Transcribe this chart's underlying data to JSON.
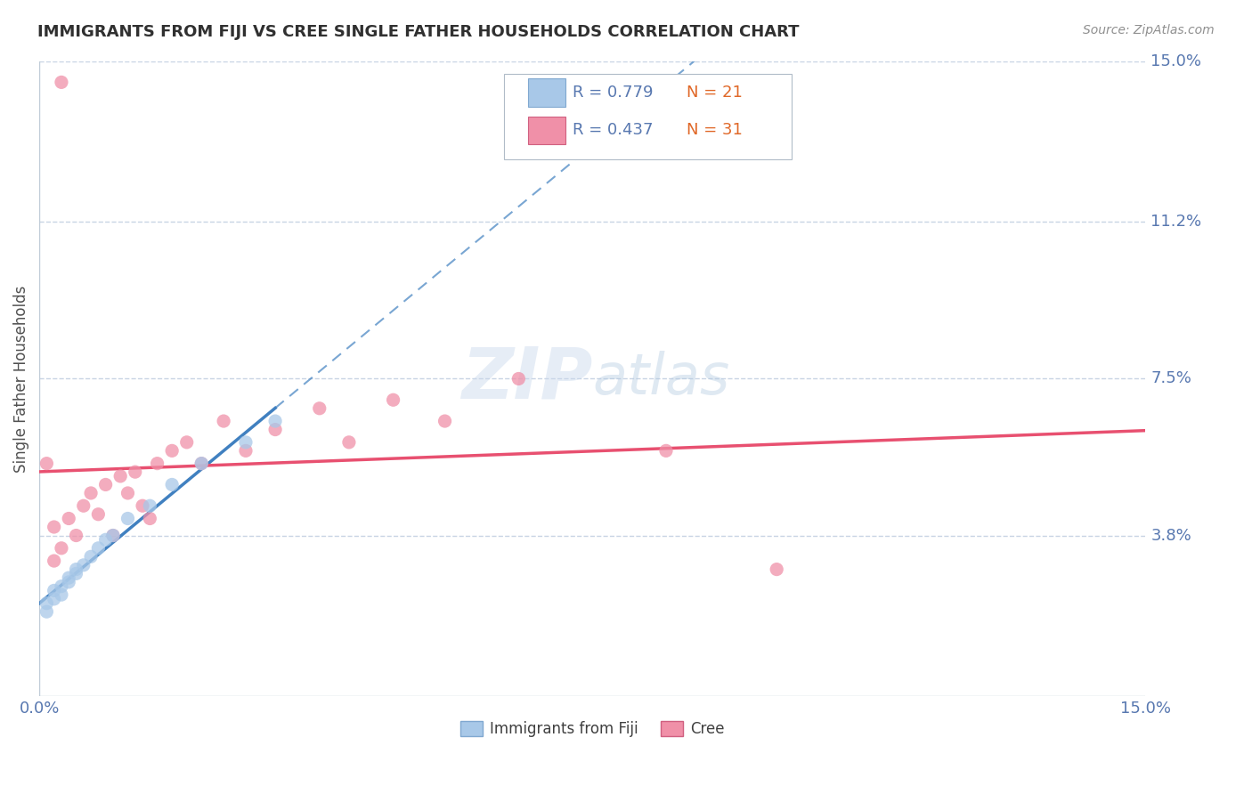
{
  "title": "IMMIGRANTS FROM FIJI VS CREE SINGLE FATHER HOUSEHOLDS CORRELATION CHART",
  "source_text": "Source: ZipAtlas.com",
  "ylabel": "Single Father Households",
  "xlim": [
    0.0,
    0.15
  ],
  "ylim": [
    0.0,
    0.15
  ],
  "ytick_values": [
    0.038,
    0.075,
    0.112,
    0.15
  ],
  "ytick_labels": [
    "3.8%",
    "7.5%",
    "11.2%",
    "15.0%"
  ],
  "xtick_labels": [
    "0.0%",
    "15.0%"
  ],
  "grid_color": "#c8d4e4",
  "background_color": "#ffffff",
  "fiji_color": "#a8c8e8",
  "cree_color": "#f090a8",
  "fiji_line_color": "#4080c0",
  "cree_line_color": "#e85070",
  "fiji_R": 0.779,
  "fiji_N": 21,
  "cree_R": 0.437,
  "cree_N": 31,
  "legend_label_fiji": "Immigrants from Fiji",
  "legend_label_cree": "Cree",
  "watermark_zip": "ZIP",
  "watermark_atlas": "atlas",
  "fiji_scatter_x": [
    0.001,
    0.001,
    0.002,
    0.002,
    0.003,
    0.003,
    0.004,
    0.004,
    0.005,
    0.005,
    0.006,
    0.007,
    0.008,
    0.009,
    0.01,
    0.012,
    0.015,
    0.018,
    0.022,
    0.028,
    0.032
  ],
  "fiji_scatter_y": [
    0.02,
    0.022,
    0.023,
    0.025,
    0.024,
    0.026,
    0.027,
    0.028,
    0.03,
    0.029,
    0.031,
    0.033,
    0.035,
    0.037,
    0.038,
    0.042,
    0.045,
    0.05,
    0.055,
    0.06,
    0.065
  ],
  "cree_scatter_x": [
    0.001,
    0.002,
    0.002,
    0.003,
    0.004,
    0.005,
    0.006,
    0.007,
    0.008,
    0.009,
    0.01,
    0.011,
    0.012,
    0.013,
    0.014,
    0.015,
    0.016,
    0.018,
    0.02,
    0.022,
    0.025,
    0.028,
    0.032,
    0.038,
    0.042,
    0.048,
    0.055,
    0.065,
    0.085,
    0.1,
    0.003
  ],
  "cree_scatter_y": [
    0.055,
    0.032,
    0.04,
    0.035,
    0.042,
    0.038,
    0.045,
    0.048,
    0.043,
    0.05,
    0.038,
    0.052,
    0.048,
    0.053,
    0.045,
    0.042,
    0.055,
    0.058,
    0.06,
    0.055,
    0.065,
    0.058,
    0.063,
    0.068,
    0.06,
    0.07,
    0.065,
    0.075,
    0.058,
    0.03,
    0.145
  ],
  "title_color": "#303030",
  "source_color": "#909090",
  "axis_label_color": "#5878b0",
  "legend_R_color": "#5878b0",
  "legend_N_color": "#e06828"
}
